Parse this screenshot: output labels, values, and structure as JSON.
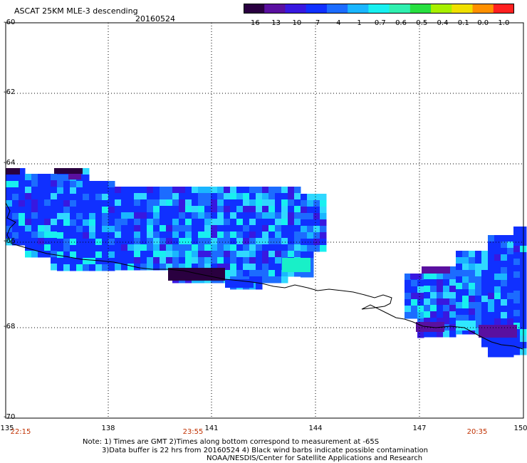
{
  "header": {
    "title": "ASCAT 25KM MLE-3 descending",
    "date": "20160524"
  },
  "colorbar": {
    "labels": [
      "-16",
      "-13",
      "-10",
      "-7",
      "-4",
      "-1",
      "-0.7",
      "-0.6",
      "-0.5",
      "-0.4",
      "-0.1",
      "0.0",
      "1.0"
    ],
    "colors": [
      "#2a0040",
      "#5a10a0",
      "#3818e0",
      "#1030ff",
      "#1c6cff",
      "#1ab6ff",
      "#18f0f0",
      "#30f0b0",
      "#28e040",
      "#a8f000",
      "#f0e000",
      "#ff9000",
      "#ff2020"
    ]
  },
  "axes": {
    "lat_labels": [
      "-60",
      "-62",
      "-64",
      "-66",
      "-68",
      "-70"
    ],
    "lon_labels": [
      "135",
      "138",
      "141",
      "144",
      "147",
      "150"
    ]
  },
  "times": [
    "22:15",
    "23:55",
    "20:35"
  ],
  "notes": {
    "line1": "Note: 1) Times are GMT 2)Times along bottom correspond to measurement at -65S",
    "line2": "3)Data buffer is 22 hrs from 20160524 4) Black wind barbs indicate possible contamination",
    "line3": "NOAA/NESDIS/Center for Satellite Applications and Research"
  }
}
